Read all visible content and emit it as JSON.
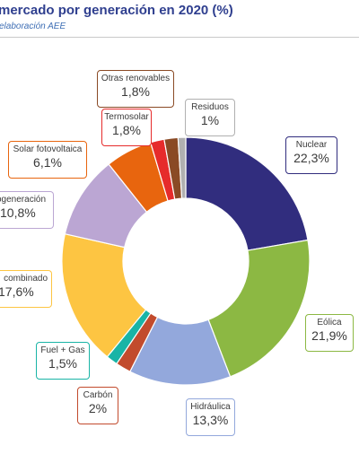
{
  "header": {
    "title": "mercado por generación en 2020 (%)",
    "subtitle": "elaboración AEE"
  },
  "chart_data": {
    "type": "pie",
    "donut": true,
    "unit": "%",
    "slices": [
      {
        "name": "Nuclear",
        "value": 22.3,
        "label": "22,3%",
        "color": "#312d7e"
      },
      {
        "name": "Eólica",
        "value": 21.9,
        "label": "21,9%",
        "color": "#8cb843"
      },
      {
        "name": "Hidráulica",
        "value": 13.3,
        "label": "13,3%",
        "color": "#93a8dc"
      },
      {
        "name": "Carbón",
        "value": 2.0,
        "label": "2%",
        "color": "#c24b2d"
      },
      {
        "name": "Fuel + Gas",
        "value": 1.5,
        "label": "1,5%",
        "color": "#19b4a6"
      },
      {
        "name": "combinado",
        "value": 17.6,
        "label": "17,6%",
        "color": "#fdc542"
      },
      {
        "name": "ogeneración",
        "value": 10.8,
        "label": "10,8%",
        "color": "#bba6d3"
      },
      {
        "name": "Solar fotovoltaica",
        "value": 6.1,
        "label": "6,1%",
        "color": "#e8650e"
      },
      {
        "name": "Termosolar",
        "value": 1.8,
        "label": "1,8%",
        "color": "#e62b2b"
      },
      {
        "name": "Otras renovables",
        "value": 1.8,
        "label": "1,8%",
        "color": "#8a4a25"
      },
      {
        "name": "Residuos",
        "value": 1.0,
        "label": "1%",
        "color": "#b0b0b0"
      }
    ]
  }
}
